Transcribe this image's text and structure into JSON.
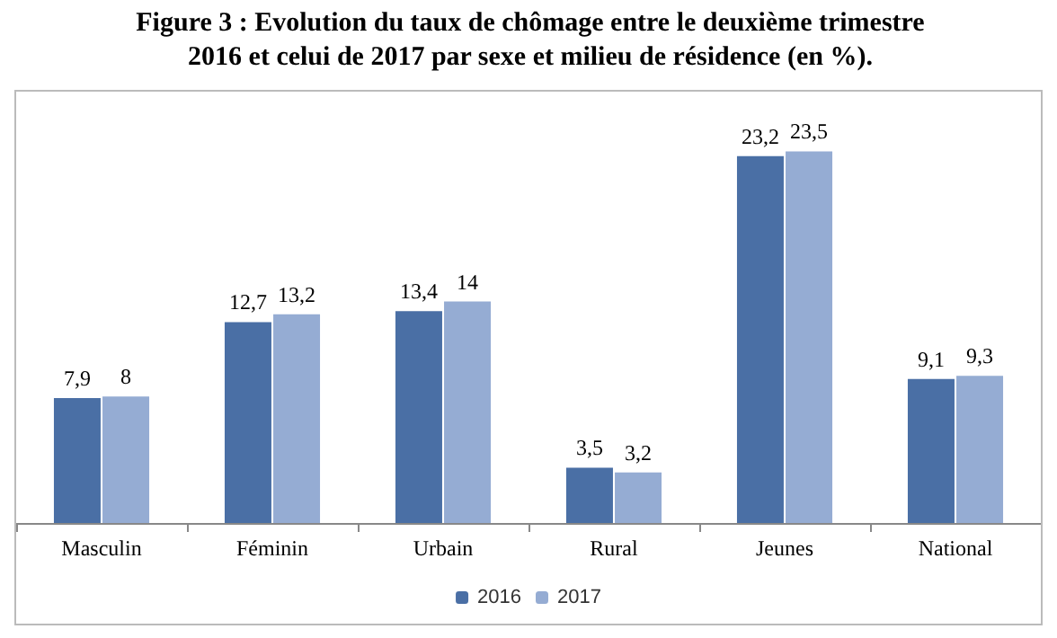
{
  "chart_data": {
    "type": "bar",
    "title": "Figure 3 : Evolution du taux de chômage entre le deuxième trimestre 2016 et celui de 2017 par sexe et milieu de résidence (en %).",
    "categories": [
      "Masculin",
      "Féminin",
      "Urbain",
      "Rural",
      "Jeunes",
      "National"
    ],
    "series": [
      {
        "name": "2016",
        "color": "#4a6fa5",
        "values": [
          7.9,
          12.7,
          13.4,
          3.5,
          23.2,
          9.1
        ],
        "value_labels": [
          "7,9",
          "12,7",
          "13,4",
          "3,5",
          "23,2",
          "9,1"
        ]
      },
      {
        "name": "2017",
        "color": "#95acd3",
        "values": [
          8,
          13.2,
          14,
          3.2,
          23.5,
          9.3
        ],
        "value_labels": [
          "8",
          "13,2",
          "14",
          "3,2",
          "23,5",
          "9,3"
        ]
      }
    ],
    "legend": "bottom"
  }
}
